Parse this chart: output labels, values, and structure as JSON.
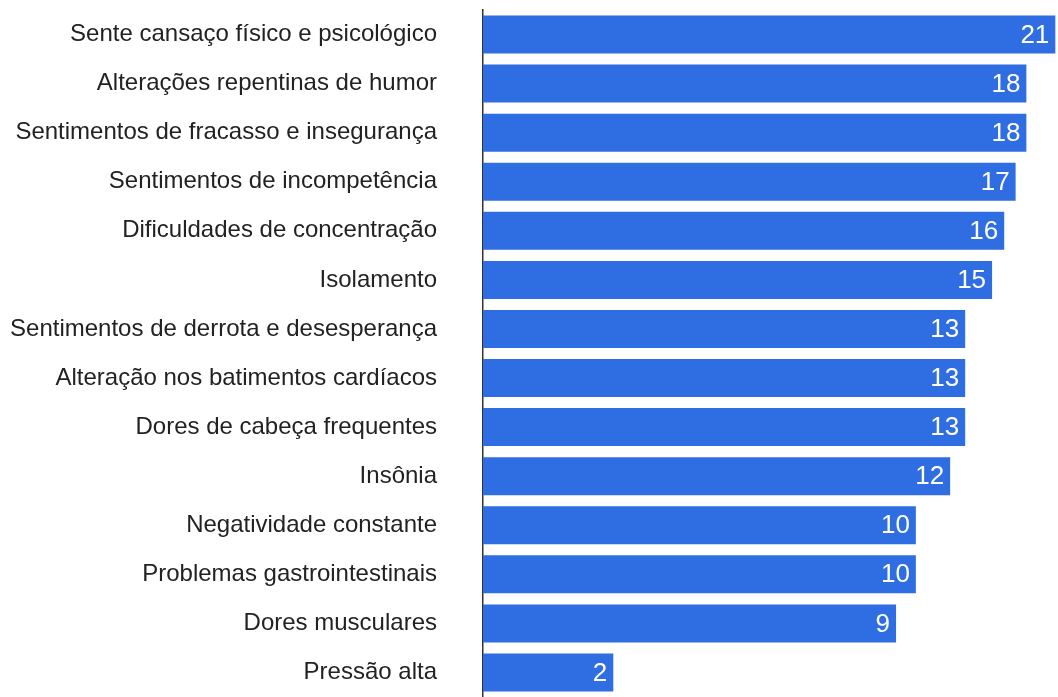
{
  "chart_data": {
    "type": "bar",
    "orientation": "horizontal",
    "categories": [
      "Sente cansaço físico e psicológico",
      "Alterações repentinas de humor",
      "Sentimentos de fracasso e insegurança",
      "Sentimentos de incompetência",
      "Dificuldades de concentração",
      "Isolamento",
      "Sentimentos de derrota e desesperança",
      "Alteração nos batimentos cardíacos",
      "Dores de cabeça frequentes",
      "Insônia",
      "Negatividade constante",
      "Problemas gastrointestinais",
      "Dores musculares",
      "Pressão alta"
    ],
    "values": [
      21,
      18,
      18,
      17,
      16,
      15,
      13,
      13,
      13,
      12,
      10,
      10,
      9,
      2
    ],
    "color": "#2f6de3",
    "log": "x",
    "xlim": [
      1,
      21.3
    ],
    "data_labels": true,
    "tick_labels": "y",
    "grid": false
  }
}
